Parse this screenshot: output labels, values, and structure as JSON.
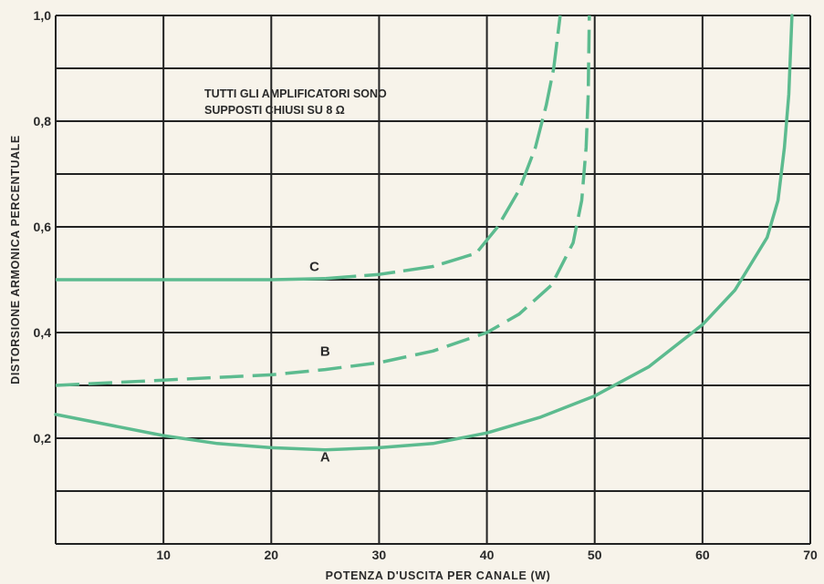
{
  "chart_data": {
    "type": "line",
    "title": "",
    "xlabel": "POTENZA D'USCITA PER CANALE (W)",
    "ylabel": "DISTORSIONE ARMONICA PERCENTUALE",
    "xlim": [
      0,
      70
    ],
    "ylim": [
      0,
      1.0
    ],
    "x_ticks": [
      10,
      20,
      30,
      40,
      50,
      60,
      70
    ],
    "x_tick_labels": [
      "10",
      "20",
      "30",
      "40",
      "50",
      "60",
      "70"
    ],
    "y_ticks": [
      0.2,
      0.4,
      0.6,
      0.8,
      1.0
    ],
    "y_tick_labels": [
      "0,2",
      "0,4",
      "0,6",
      "0,8",
      "1,0"
    ],
    "grid": true,
    "annotation": {
      "line1": "TUTTI GLI AMPLIFICATORI SONO",
      "line2": "SUPPOSTI CHIUSI SU 8 Ω"
    },
    "colors": {
      "curve": "#5cbb8f",
      "grid": "#222222",
      "background": "#f7f3ea"
    },
    "series": [
      {
        "name": "A",
        "style": "solid",
        "points": [
          [
            0,
            0.245
          ],
          [
            5,
            0.225
          ],
          [
            10,
            0.205
          ],
          [
            15,
            0.19
          ],
          [
            20,
            0.182
          ],
          [
            25,
            0.178
          ],
          [
            30,
            0.182
          ],
          [
            35,
            0.19
          ],
          [
            40,
            0.21
          ],
          [
            45,
            0.24
          ],
          [
            50,
            0.28
          ],
          [
            55,
            0.335
          ],
          [
            60,
            0.415
          ],
          [
            63,
            0.48
          ],
          [
            66,
            0.58
          ],
          [
            67,
            0.65
          ],
          [
            67.6,
            0.75
          ],
          [
            68,
            0.85
          ],
          [
            68.3,
            1.0
          ]
        ]
      },
      {
        "name": "B",
        "style": "dashed",
        "points": [
          [
            0,
            0.3
          ],
          [
            5,
            0.305
          ],
          [
            10,
            0.31
          ],
          [
            15,
            0.315
          ],
          [
            20,
            0.32
          ],
          [
            25,
            0.33
          ],
          [
            30,
            0.343
          ],
          [
            35,
            0.365
          ],
          [
            40,
            0.4
          ],
          [
            43,
            0.435
          ],
          [
            46,
            0.49
          ],
          [
            48,
            0.57
          ],
          [
            48.8,
            0.65
          ],
          [
            49.2,
            0.75
          ],
          [
            49.4,
            0.85
          ],
          [
            49.5,
            1.0
          ]
        ]
      },
      {
        "name": "C",
        "style": "solid-dashed",
        "points": [
          [
            0,
            0.5
          ],
          [
            10,
            0.5
          ],
          [
            20,
            0.5
          ],
          [
            25,
            0.502
          ],
          [
            30,
            0.51
          ],
          [
            35,
            0.525
          ],
          [
            39,
            0.55
          ],
          [
            41,
            0.6
          ],
          [
            43,
            0.67
          ],
          [
            44.5,
            0.75
          ],
          [
            45.5,
            0.83
          ],
          [
            46.2,
            0.9
          ],
          [
            46.8,
            1.0
          ]
        ]
      }
    ],
    "series_labels": [
      {
        "name": "A",
        "text": "A",
        "x": 25,
        "y": 0.165
      },
      {
        "name": "B",
        "text": "B",
        "x": 25,
        "y": 0.365
      },
      {
        "name": "C",
        "text": "C",
        "x": 24,
        "y": 0.525
      }
    ]
  }
}
